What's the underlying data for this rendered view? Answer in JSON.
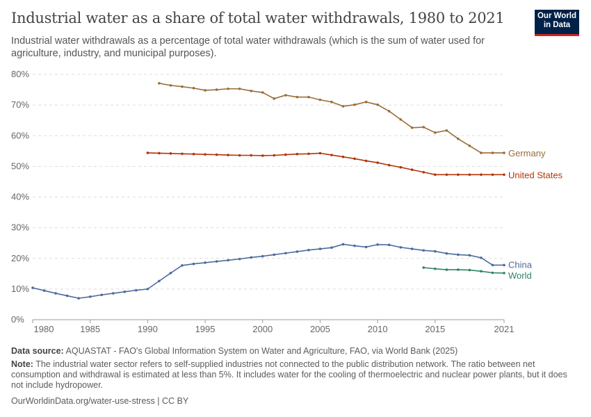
{
  "header": {
    "title": "Industrial water as a share of total water withdrawals, 1980 to 2021",
    "subtitle": "Industrial water withdrawals as a percentage of total water withdrawals (which is the sum of water used for agriculture, industry, and municipal purposes).",
    "logo": "Our World in Data"
  },
  "chart_data": {
    "type": "line",
    "x_ticks": [
      1980,
      1985,
      1990,
      1995,
      2000,
      2005,
      2010,
      2015,
      2021
    ],
    "y_ticks": [
      "0%",
      "10%",
      "20%",
      "30%",
      "40%",
      "50%",
      "60%",
      "70%",
      "80%"
    ],
    "xlim": [
      1980,
      2021
    ],
    "ylim": [
      0,
      80
    ],
    "grid": "horizontal dashed",
    "legend": "inline right labels",
    "series": [
      {
        "name": "Germany",
        "color": "#996d39",
        "start": 1991,
        "values": [
          77.1,
          76.4,
          76.0,
          75.5,
          74.8,
          75.0,
          75.3,
          75.3,
          74.6,
          74.1,
          72.1,
          73.2,
          72.6,
          72.6,
          71.7,
          71.0,
          69.6,
          70.1,
          71.0,
          70.1,
          68.0,
          65.3,
          62.6,
          62.8,
          61.0,
          61.7,
          59.0,
          56.7,
          54.4,
          54.4,
          54.4
        ]
      },
      {
        "name": "United States",
        "color": "#b13507",
        "start": 1990,
        "values": [
          54.4,
          54.3,
          54.2,
          54.1,
          54.0,
          53.9,
          53.8,
          53.7,
          53.6,
          53.6,
          53.5,
          53.6,
          53.8,
          54.0,
          54.1,
          54.3,
          53.7,
          53.1,
          52.5,
          51.8,
          51.2,
          50.4,
          49.7,
          48.9,
          48.1,
          47.3,
          47.3,
          47.3,
          47.3,
          47.3,
          47.3,
          47.3
        ]
      },
      {
        "name": "China",
        "color": "#4c6a9c",
        "start": 1980,
        "values": [
          10.4,
          9.5,
          8.6,
          7.8,
          7.0,
          7.5,
          8.1,
          8.6,
          9.1,
          9.6,
          10.0,
          12.6,
          15.2,
          17.7,
          18.2,
          18.6,
          19.0,
          19.4,
          19.8,
          20.3,
          20.7,
          21.2,
          21.7,
          22.2,
          22.7,
          23.1,
          23.5,
          24.6,
          24.1,
          23.7,
          24.5,
          24.4,
          23.6,
          23.1,
          22.6,
          22.3,
          21.6,
          21.2,
          21.0,
          20.2,
          17.8,
          17.8
        ]
      },
      {
        "name": "World",
        "color": "#2c8465",
        "start": 2014,
        "values": [
          17.0,
          16.6,
          16.3,
          16.3,
          16.2,
          15.8,
          15.3,
          15.2
        ]
      }
    ]
  },
  "footer": {
    "source_label": "Data source:",
    "source": "AQUASTAT - FAO's Global Information System on Water and Agriculture, FAO, via World Bank (2025)",
    "note_label": "Note:",
    "note": "The industrial water sector refers to self-supplied industries not connected to the public distribution network. The ratio between net consumption and withdrawal is estimated at less than 5%. It includes water for the cooling of thermoelectric and nuclear power plants, but it does not include hydropower.",
    "link": "OurWorldinData.org/water-use-stress | CC BY"
  }
}
